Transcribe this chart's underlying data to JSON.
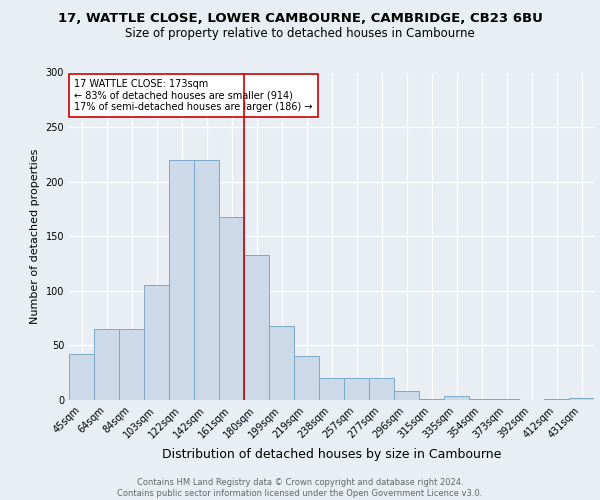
{
  "title1": "17, WATTLE CLOSE, LOWER CAMBOURNE, CAMBRIDGE, CB23 6BU",
  "title2": "Size of property relative to detached houses in Cambourne",
  "xlabel": "Distribution of detached houses by size in Cambourne",
  "ylabel": "Number of detached properties",
  "categories": [
    "45sqm",
    "64sqm",
    "84sqm",
    "103sqm",
    "122sqm",
    "142sqm",
    "161sqm",
    "180sqm",
    "199sqm",
    "219sqm",
    "238sqm",
    "257sqm",
    "277sqm",
    "296sqm",
    "315sqm",
    "335sqm",
    "354sqm",
    "373sqm",
    "392sqm",
    "412sqm",
    "431sqm"
  ],
  "values": [
    42,
    65,
    65,
    105,
    220,
    220,
    168,
    133,
    68,
    40,
    20,
    20,
    20,
    8,
    1,
    4,
    1,
    1,
    0,
    1,
    2
  ],
  "bar_color": "#ccd9e8",
  "bar_edge_color": "#7aaac8",
  "vline_color": "#cc0000",
  "vline_index": 7,
  "annotation_text": "17 WATTLE CLOSE: 173sqm\n← 83% of detached houses are smaller (914)\n17% of semi-detached houses are larger (186) →",
  "annotation_box_color": "#ffffff",
  "annotation_box_edge": "#cc0000",
  "ylim": [
    0,
    300
  ],
  "yticks": [
    0,
    50,
    100,
    150,
    200,
    250,
    300
  ],
  "footer": "Contains HM Land Registry data © Crown copyright and database right 2024.\nContains public sector information licensed under the Open Government Licence v3.0.",
  "title1_fontsize": 9.5,
  "title2_fontsize": 8.5,
  "xlabel_fontsize": 9,
  "ylabel_fontsize": 8,
  "tick_fontsize": 7,
  "footer_fontsize": 6,
  "background_color": "#e8eef4"
}
